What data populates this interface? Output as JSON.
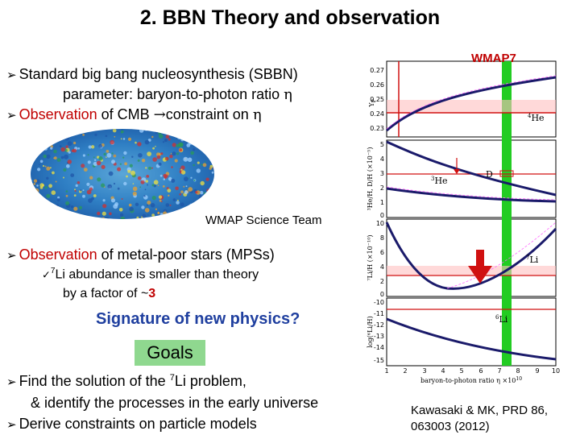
{
  "title": "2. BBN Theory and observation",
  "bullets": {
    "b1_line1": "Standard big bang nucleosynthesis (SBBN)",
    "b1_line2": "parameter: baryon-to-photon ratio ",
    "eta": "η",
    "b2_obs": "Observation",
    "b2_mid": " of CMB ",
    "b2_arrow": "→",
    "b2_end": "constraint on ",
    "b3_obs": "Observation",
    "b3_end": " of metal-poor stars (MPSs)",
    "sub_check": "✓",
    "sub_sup": "7",
    "sub_line1": "Li abundance is smaller than theory",
    "sub_line2": "by a factor of ~",
    "sub_factor": "3"
  },
  "cmb_credit": "WMAP Science Team",
  "signature": "Signature of new physics?",
  "goals": {
    "label": "Goals",
    "item1_pre": "Find the solution of the ",
    "item1_sup": "7",
    "item1_post": "Li problem,",
    "item1_line2": "& identify the processes in the early universe",
    "item2": "Derive constraints on particle models"
  },
  "figure": {
    "wmap_label": "WMAP7",
    "xlabel": "baryon-to-photon ratio  η ×10",
    "xlabel_exp": "10",
    "he4_label": "He",
    "he4_sup": "4",
    "he3_label": "He",
    "he3_sup": "3",
    "d_label": "D",
    "li7_label": "Li",
    "li7_sup": "7",
    "li6_label": "Li",
    "li6_sup": "6",
    "yp_axis": "Y",
    "yp_sub": "P",
    "dh_axis": "³He/H, D/H (×10⁻⁵)",
    "li7_axis": "⁷Li/H (×10⁻¹⁰)",
    "li6_axis": "log(⁶Li/H)",
    "x_ticks": [
      "1",
      "2",
      "3",
      "4",
      "5",
      "6",
      "7",
      "8",
      "9",
      "10"
    ],
    "yp_ticks": [
      "0.27",
      "0.26",
      "0.25",
      "0.24",
      "0.23"
    ],
    "dh_ticks": [
      "5",
      "4",
      "3",
      "2",
      "1",
      "0"
    ],
    "li7_ticks": [
      "10",
      "8",
      "6",
      "4",
      "2",
      "0"
    ],
    "li6_ticks": [
      "-10",
      "-11",
      "-12",
      "-13",
      "-14",
      "-15"
    ],
    "colors": {
      "band": "#22cc22",
      "obs": "#d01010",
      "theory": "#1a1a6a"
    }
  },
  "citation_line1": "Kawasaki & MK, PRD 86,",
  "citation_line2": "063003 (2012)"
}
